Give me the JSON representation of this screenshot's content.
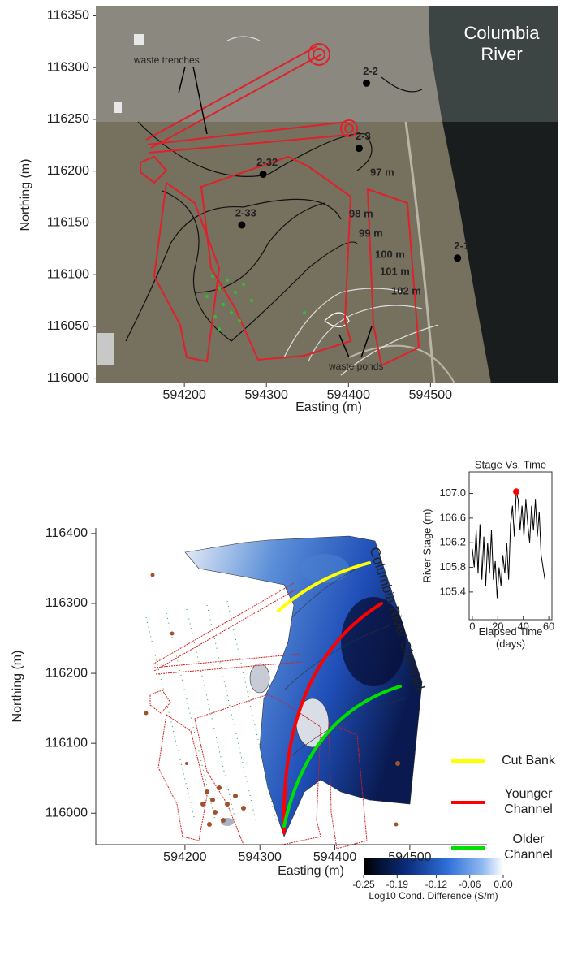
{
  "top_map": {
    "xlabel": "Easting (m)",
    "ylabel": "Northing (m)",
    "xlim": [
      594092,
      594656
    ],
    "ylim": [
      115995,
      116359
    ],
    "xticks": [
      594200,
      594300,
      594400,
      594500
    ],
    "yticks": [
      116000,
      116050,
      116100,
      116150,
      116200,
      116250,
      116300,
      116350
    ],
    "river_label": "Columbia River",
    "wells": [
      {
        "label": "2-2",
        "easting": 594422,
        "northing": 116285
      },
      {
        "label": "2-3",
        "easting": 594413,
        "northing": 116222
      },
      {
        "label": "2-32",
        "easting": 594296,
        "northing": 116197
      },
      {
        "label": "2-33",
        "easting": 594270,
        "northing": 116148
      },
      {
        "label": "2-1",
        "easting": 594533,
        "northing": 116116
      }
    ],
    "contour_labels": [
      "97 m",
      "98 m",
      "99 m",
      "100 m",
      "101 m",
      "102 m"
    ],
    "annotations": [
      "waste trenches",
      "waste ponds"
    ]
  },
  "bottom_map": {
    "xlabel": "Easting (m)",
    "ylabel": "Northing (m)",
    "xlim": [
      594081,
      594603
    ],
    "ylim": [
      115955,
      116408
    ],
    "xticks": [
      594200,
      594300,
      594400,
      594500
    ],
    "yticks": [
      116000,
      116100,
      116200,
      116300,
      116400
    ],
    "river_label": "Columbia River Channel",
    "legend": [
      {
        "name": "Cut Bank",
        "color": "#ffff00"
      },
      {
        "name": "Younger Channel",
        "color": "#ff0000"
      },
      {
        "name": "Older Channel",
        "color": "#00e000"
      }
    ],
    "colorbar": {
      "label": "Log10 Cond. Difference (S/m)",
      "clim": [
        -0.25,
        0
      ],
      "ticks": [
        -0.25,
        -0.19,
        -0.12,
        -0.06,
        {
          "value": 0,
          "label": "0.00"
        }
      ]
    }
  },
  "chart_data": {
    "type": "line",
    "title": "Stage Vs. Time",
    "xlabel": "Elapsed Time (days)",
    "ylabel": "River Stage (m)",
    "xlim": [
      -2.5,
      62.5
    ],
    "ylim": [
      104.95,
      107.35
    ],
    "xticks": [
      0,
      20,
      40,
      60
    ],
    "yticks": [
      105.4,
      105.8,
      106.2,
      106.6,
      {
        "value": 107,
        "label": "107.0"
      }
    ],
    "color": "#000000",
    "x": [
      0,
      1.5,
      3,
      4.5,
      6,
      7.5,
      9,
      10.5,
      12,
      13.5,
      15,
      16.5,
      18,
      19.5,
      21,
      22.5,
      24,
      25.5,
      27,
      28.5,
      30,
      31.5,
      33,
      34.5,
      36,
      37.5,
      39,
      40.5,
      42,
      43.5,
      45,
      46.5,
      48,
      49.5,
      51,
      52.5,
      54,
      55.5,
      57
    ],
    "values": [
      106.1,
      105.8,
      106.4,
      105.7,
      106.5,
      105.6,
      106.3,
      105.5,
      106.2,
      105.7,
      106.4,
      105.6,
      105.9,
      105.3,
      105.8,
      105.5,
      106.0,
      105.7,
      106.2,
      105.6,
      106.5,
      106.8,
      106.3,
      107.03,
      106.9,
      106.4,
      106.8,
      106.3,
      106.9,
      106.5,
      106.2,
      106.8,
      106.4,
      106.9,
      106.3,
      106.7,
      106.0,
      105.8,
      105.6
    ],
    "highlight_index": 23,
    "highlight_color": "#ff0000"
  }
}
